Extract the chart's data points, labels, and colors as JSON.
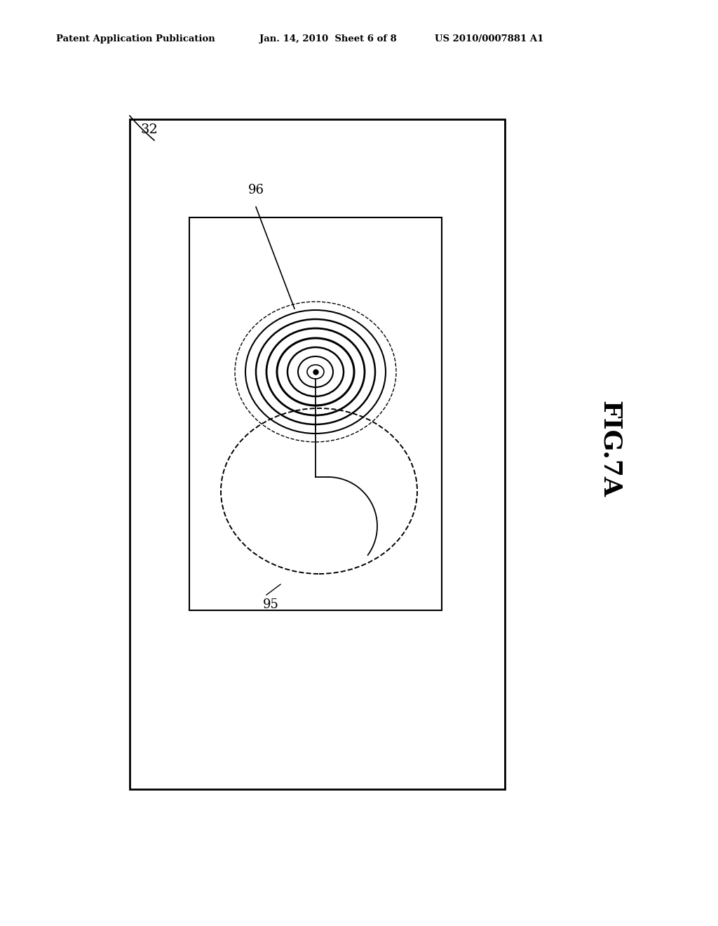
{
  "bg_color": "#ffffff",
  "header_text_left": "Patent Application Publication",
  "header_text_mid": "Jan. 14, 2010  Sheet 6 of 8",
  "header_text_right": "US 2010/0007881 A1",
  "fig_label": "FIG.7A",
  "label_32": "32",
  "label_96": "96",
  "label_95": "95",
  "line_color": "#000000"
}
